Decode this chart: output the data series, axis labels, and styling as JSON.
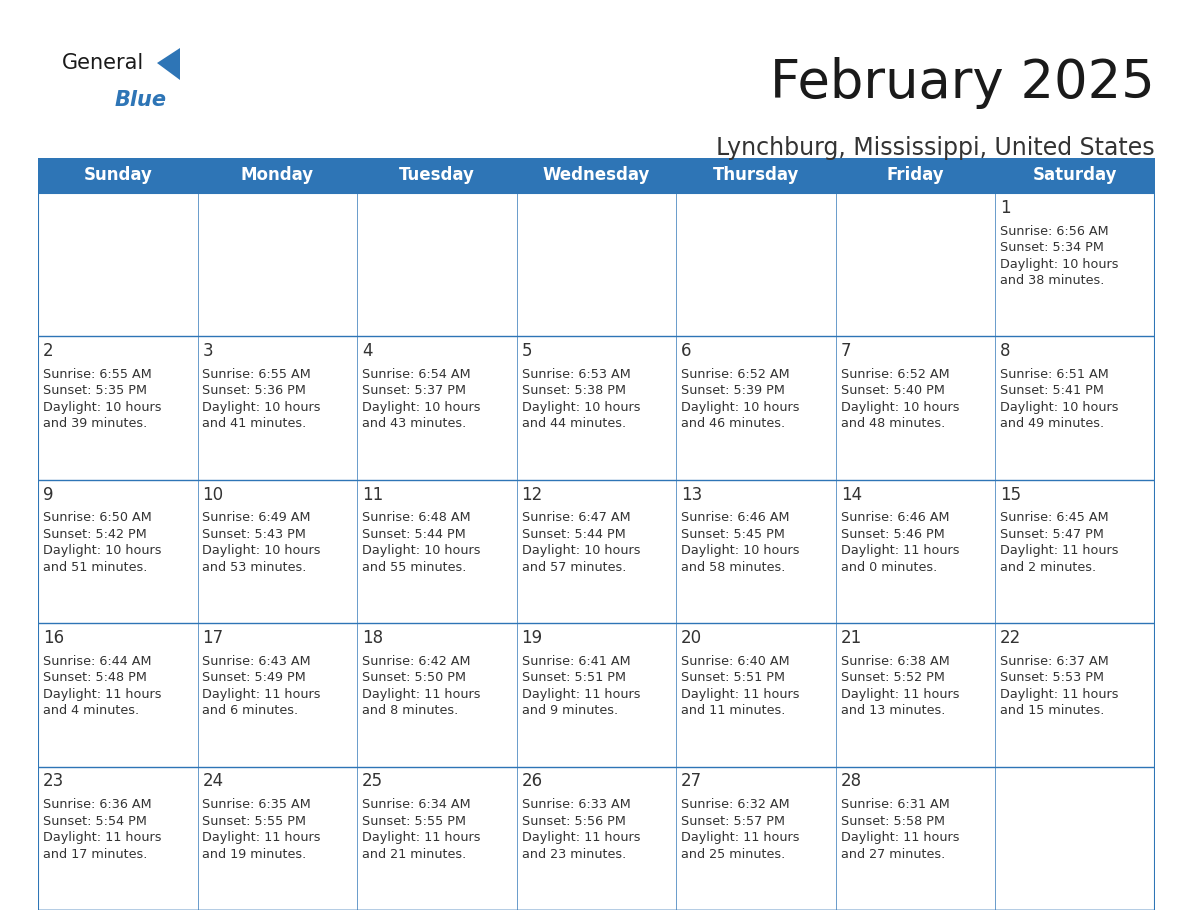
{
  "title": "February 2025",
  "subtitle": "Lynchburg, Mississippi, United States",
  "header_bg": "#2E75B6",
  "header_text": "#FFFFFF",
  "cell_bg": "#FFFFFF",
  "cell_bg_alt": "#F2F2F2",
  "day_number_color": "#333333",
  "info_text_color": "#333333",
  "border_color": "#2E75B6",
  "grid_line_color": "#2E75B6",
  "days_of_week": [
    "Sunday",
    "Monday",
    "Tuesday",
    "Wednesday",
    "Thursday",
    "Friday",
    "Saturday"
  ],
  "weeks": [
    [
      {
        "day": null,
        "info": ""
      },
      {
        "day": null,
        "info": ""
      },
      {
        "day": null,
        "info": ""
      },
      {
        "day": null,
        "info": ""
      },
      {
        "day": null,
        "info": ""
      },
      {
        "day": null,
        "info": ""
      },
      {
        "day": 1,
        "info": "Sunrise: 6:56 AM\nSunset: 5:34 PM\nDaylight: 10 hours\nand 38 minutes."
      }
    ],
    [
      {
        "day": 2,
        "info": "Sunrise: 6:55 AM\nSunset: 5:35 PM\nDaylight: 10 hours\nand 39 minutes."
      },
      {
        "day": 3,
        "info": "Sunrise: 6:55 AM\nSunset: 5:36 PM\nDaylight: 10 hours\nand 41 minutes."
      },
      {
        "day": 4,
        "info": "Sunrise: 6:54 AM\nSunset: 5:37 PM\nDaylight: 10 hours\nand 43 minutes."
      },
      {
        "day": 5,
        "info": "Sunrise: 6:53 AM\nSunset: 5:38 PM\nDaylight: 10 hours\nand 44 minutes."
      },
      {
        "day": 6,
        "info": "Sunrise: 6:52 AM\nSunset: 5:39 PM\nDaylight: 10 hours\nand 46 minutes."
      },
      {
        "day": 7,
        "info": "Sunrise: 6:52 AM\nSunset: 5:40 PM\nDaylight: 10 hours\nand 48 minutes."
      },
      {
        "day": 8,
        "info": "Sunrise: 6:51 AM\nSunset: 5:41 PM\nDaylight: 10 hours\nand 49 minutes."
      }
    ],
    [
      {
        "day": 9,
        "info": "Sunrise: 6:50 AM\nSunset: 5:42 PM\nDaylight: 10 hours\nand 51 minutes."
      },
      {
        "day": 10,
        "info": "Sunrise: 6:49 AM\nSunset: 5:43 PM\nDaylight: 10 hours\nand 53 minutes."
      },
      {
        "day": 11,
        "info": "Sunrise: 6:48 AM\nSunset: 5:44 PM\nDaylight: 10 hours\nand 55 minutes."
      },
      {
        "day": 12,
        "info": "Sunrise: 6:47 AM\nSunset: 5:44 PM\nDaylight: 10 hours\nand 57 minutes."
      },
      {
        "day": 13,
        "info": "Sunrise: 6:46 AM\nSunset: 5:45 PM\nDaylight: 10 hours\nand 58 minutes."
      },
      {
        "day": 14,
        "info": "Sunrise: 6:46 AM\nSunset: 5:46 PM\nDaylight: 11 hours\nand 0 minutes."
      },
      {
        "day": 15,
        "info": "Sunrise: 6:45 AM\nSunset: 5:47 PM\nDaylight: 11 hours\nand 2 minutes."
      }
    ],
    [
      {
        "day": 16,
        "info": "Sunrise: 6:44 AM\nSunset: 5:48 PM\nDaylight: 11 hours\nand 4 minutes."
      },
      {
        "day": 17,
        "info": "Sunrise: 6:43 AM\nSunset: 5:49 PM\nDaylight: 11 hours\nand 6 minutes."
      },
      {
        "day": 18,
        "info": "Sunrise: 6:42 AM\nSunset: 5:50 PM\nDaylight: 11 hours\nand 8 minutes."
      },
      {
        "day": 19,
        "info": "Sunrise: 6:41 AM\nSunset: 5:51 PM\nDaylight: 11 hours\nand 9 minutes."
      },
      {
        "day": 20,
        "info": "Sunrise: 6:40 AM\nSunset: 5:51 PM\nDaylight: 11 hours\nand 11 minutes."
      },
      {
        "day": 21,
        "info": "Sunrise: 6:38 AM\nSunset: 5:52 PM\nDaylight: 11 hours\nand 13 minutes."
      },
      {
        "day": 22,
        "info": "Sunrise: 6:37 AM\nSunset: 5:53 PM\nDaylight: 11 hours\nand 15 minutes."
      }
    ],
    [
      {
        "day": 23,
        "info": "Sunrise: 6:36 AM\nSunset: 5:54 PM\nDaylight: 11 hours\nand 17 minutes."
      },
      {
        "day": 24,
        "info": "Sunrise: 6:35 AM\nSunset: 5:55 PM\nDaylight: 11 hours\nand 19 minutes."
      },
      {
        "day": 25,
        "info": "Sunrise: 6:34 AM\nSunset: 5:55 PM\nDaylight: 11 hours\nand 21 minutes."
      },
      {
        "day": 26,
        "info": "Sunrise: 6:33 AM\nSunset: 5:56 PM\nDaylight: 11 hours\nand 23 minutes."
      },
      {
        "day": 27,
        "info": "Sunrise: 6:32 AM\nSunset: 5:57 PM\nDaylight: 11 hours\nand 25 minutes."
      },
      {
        "day": 28,
        "info": "Sunrise: 6:31 AM\nSunset: 5:58 PM\nDaylight: 11 hours\nand 27 minutes."
      },
      {
        "day": null,
        "info": ""
      }
    ]
  ],
  "title_fontsize": 38,
  "subtitle_fontsize": 17,
  "header_fontsize": 12,
  "day_number_fontsize": 12,
  "info_fontsize": 9.2,
  "logo_general_fontsize": 15,
  "logo_blue_fontsize": 15
}
